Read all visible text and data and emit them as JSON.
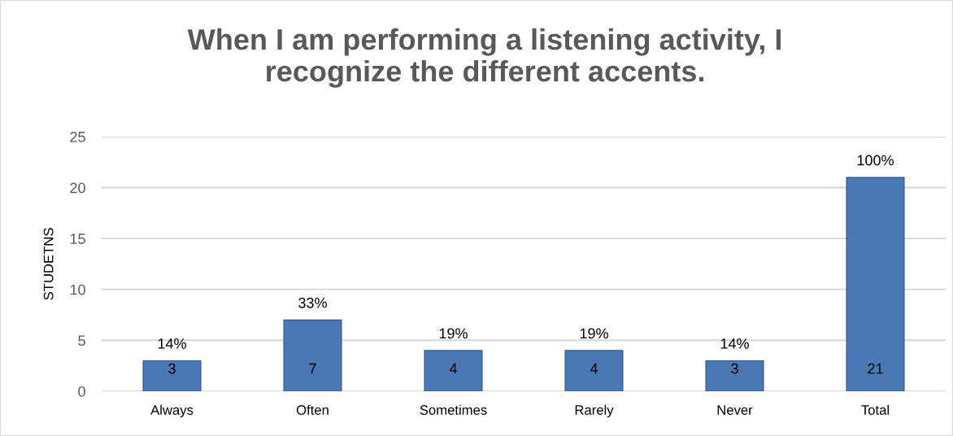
{
  "chart_data": {
    "type": "bar",
    "title": "When I am performing a listening activity, I\nrecognize the different accents.",
    "ylabel": "STUDETNS",
    "categories": [
      "Always",
      "Often",
      "Sometimes",
      "Rarely",
      "Never",
      "Total"
    ],
    "values": [
      3,
      7,
      4,
      4,
      3,
      21
    ],
    "color": "#4a78b4",
    "ylim": [
      0,
      25
    ],
    "yticks": [
      0,
      5,
      10,
      15,
      20,
      25
    ],
    "grid": "y",
    "data_labels": true,
    "annotations": [
      {
        "text": "14%",
        "x": "Always",
        "y": 3
      },
      {
        "text": "33%",
        "x": "Often",
        "y": 7
      },
      {
        "text": "19%",
        "x": "Sometimes",
        "y": 4
      },
      {
        "text": "19%",
        "x": "Rarely",
        "y": 4
      },
      {
        "text": "14%",
        "x": "Never",
        "y": 3
      },
      {
        "text": "100%",
        "x": "Total",
        "y": 21
      }
    ]
  }
}
